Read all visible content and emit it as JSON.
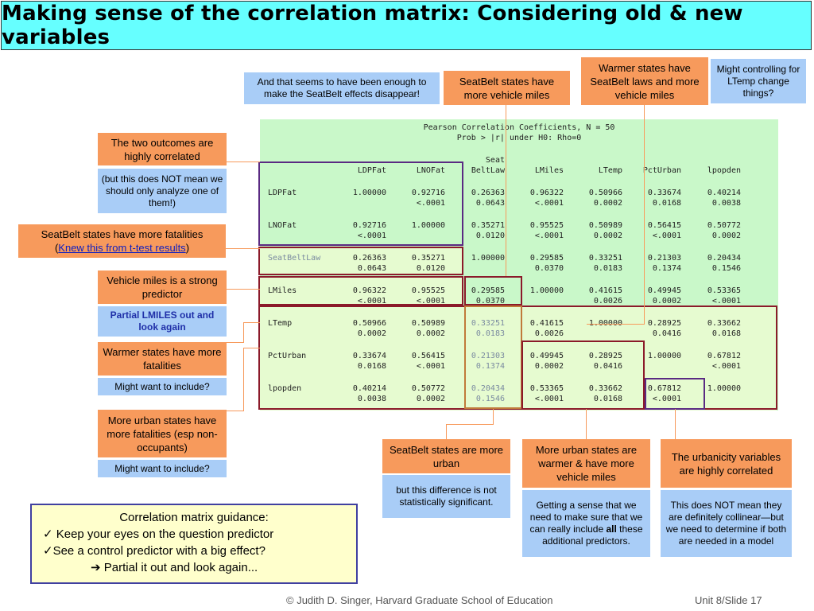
{
  "title": "Making sense of the correlation matrix: Considering old & new variables",
  "matrix": {
    "header1": "Pearson Correlation Coefficients, N = 50",
    "header2": "Prob > |r| under H0: Rho=0",
    "col_headers_top": [
      "",
      "",
      "Seat",
      "",
      "",
      "",
      ""
    ],
    "col_headers": [
      "LDPFat",
      "LNOFat",
      "BeltLaw",
      "LMiles",
      "LTemp",
      "PctUrban",
      "lpopden"
    ],
    "rows": [
      {
        "name": "LDPFat",
        "r": [
          "1.00000",
          "0.92716",
          "0.26363",
          "0.96322",
          "0.50966",
          "0.33674",
          "0.40214"
        ],
        "p": [
          "",
          "<.0001",
          "0.0643",
          "<.0001",
          "0.0002",
          "0.0168",
          "0.0038"
        ]
      },
      {
        "name": "LNOFat",
        "r": [
          "0.92716",
          "1.00000",
          "0.35271",
          "0.95525",
          "0.50989",
          "0.56415",
          "0.50772"
        ],
        "p": [
          "<.0001",
          "",
          "0.0120",
          "<.0001",
          "0.0002",
          "<.0001",
          "0.0002"
        ]
      },
      {
        "name": "SeatBeltLaw",
        "r": [
          "0.26363",
          "0.35271",
          "1.00000",
          "0.29585",
          "0.33251",
          "0.21303",
          "0.20434"
        ],
        "p": [
          "0.0643",
          "0.0120",
          "",
          "0.0370",
          "0.0183",
          "0.1374",
          "0.1546"
        ]
      },
      {
        "name": "LMiles",
        "r": [
          "0.96322",
          "0.95525",
          "0.29585",
          "1.00000",
          "0.41615",
          "0.49945",
          "0.53365"
        ],
        "p": [
          "<.0001",
          "<.0001",
          "0.0370",
          "",
          "0.0026",
          "0.0002",
          "<.0001"
        ]
      },
      {
        "name": "LTemp",
        "r": [
          "0.50966",
          "0.50989",
          "0.33251",
          "0.41615",
          "1.00000",
          "0.28925",
          "0.33662"
        ],
        "p": [
          "0.0002",
          "0.0002",
          "0.0183",
          "0.0026",
          "",
          "0.0416",
          "0.0168"
        ]
      },
      {
        "name": "PctUrban",
        "r": [
          "0.33674",
          "0.56415",
          "0.21303",
          "0.49945",
          "0.28925",
          "1.00000",
          "0.67812"
        ],
        "p": [
          "0.0168",
          "<.0001",
          "0.1374",
          "0.0002",
          "0.0416",
          "",
          "<.0001"
        ]
      },
      {
        "name": "lpopden",
        "r": [
          "0.40214",
          "0.50772",
          "0.20434",
          "0.53365",
          "0.33662",
          "0.67812",
          "1.00000"
        ],
        "p": [
          "0.0038",
          "0.0002",
          "0.1546",
          "<.0001",
          "0.0168",
          "<.0001",
          ""
        ]
      }
    ]
  },
  "left_notes": {
    "outcomes": "The two outcomes are highly correlated",
    "outcomes_sub": "(but this does NOT mean we should only analyze one of them!)",
    "seatbelt_fat_pre": "SeatBelt states have more fatalities",
    "seatbelt_fat_link": "Knew this from t-test results",
    "miles_pred": "Vehicle miles is a strong predictor",
    "miles_sub": "Partial LMILES out and look again",
    "warmer_fat": "Warmer states have more fatalities",
    "warmer_sub": "Might want to include?",
    "urban_fat": "More urban states have more fatalities (esp non-occupants)",
    "urban_sub": "Might want to include?"
  },
  "top_notes": {
    "enough": "And that seems to have been enough to make the SeatBelt effects disappear!",
    "seatbelt_miles": "SeatBelt states have more vehicle miles",
    "warmer_laws": "Warmer states have SeatBelt laws and more vehicle miles",
    "ltemp": "Might controlling for LTemp change things?"
  },
  "bottom_notes": {
    "seatbelt_urban": "SeatBelt states are more urban",
    "seatbelt_urban_sub": "but this difference is not statistically significant.",
    "urban_warmer": "More urban states are warmer & have more vehicle miles",
    "urban_warmer_sub_pre": "Getting a sense that we need to make sure that we can really include ",
    "urban_warmer_sub_bold": "all",
    "urban_warmer_sub_post": " these additional predictors.",
    "urbanicity": "The urbanicity variables are highly correlated",
    "urbanicity_sub": "This does NOT mean they are definitely collinear—but we need to determine if both are needed in a model"
  },
  "guidance": {
    "heading": "Correlation matrix guidance:",
    "item1": "✓ Keep your eyes on the question predictor",
    "item2": "✓See a control predictor with a big effect?",
    "item3": "➔ Partial it out and look again..."
  },
  "footer": {
    "credit": "© Judith D. Singer, Harvard Graduate School of Education",
    "slide": "Unit 8/Slide 17"
  },
  "colors": {
    "title_bg": "#66ffff",
    "orange": "#f79a5c",
    "blue": "#a9cdf7",
    "matrix_bg": "#c9f8c9",
    "purple": "#5a2a82",
    "maroon": "#8b1a2a",
    "light_green": "#e6fbd0"
  }
}
